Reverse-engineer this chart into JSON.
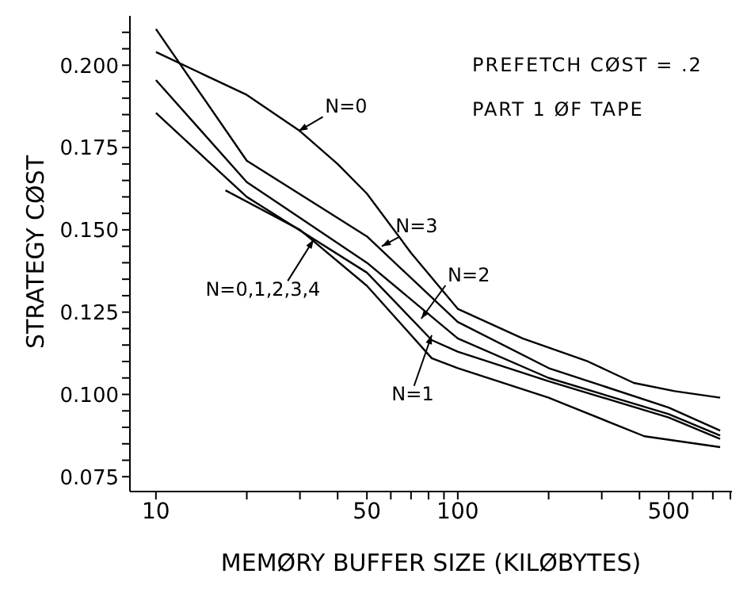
{
  "chart_data": {
    "type": "line",
    "xlabel": "MEMØRY BUFFER SIZE (KILØBYTES)",
    "ylabel": "STRATEGY CØST",
    "log": "x",
    "xlim": [
      8.2,
      810
    ],
    "xticks": [
      10,
      {
        "value": 20,
        "label": null
      },
      {
        "value": 30,
        "label": null
      },
      {
        "value": 40,
        "label": null
      },
      50,
      {
        "value": 60,
        "label": null
      },
      {
        "value": 70,
        "label": null
      },
      {
        "value": 80,
        "label": null
      },
      {
        "value": 90,
        "label": null
      },
      100,
      {
        "value": 200,
        "label": null
      },
      {
        "value": 300,
        "label": null
      },
      {
        "value": 400,
        "label": null
      },
      500,
      {
        "value": 600,
        "label": null
      },
      {
        "value": 700,
        "label": null
      },
      {
        "value": 800,
        "label": null
      }
    ],
    "ylim": [
      0.0705,
      0.215
    ],
    "yticks": [
      {
        "value": 0.075,
        "label": "0.075"
      },
      {
        "value": 0.08,
        "label": null
      },
      {
        "value": 0.085,
        "label": null
      },
      {
        "value": 0.09,
        "label": null
      },
      {
        "value": 0.095,
        "label": null
      },
      {
        "value": 0.1,
        "label": "0.100"
      },
      {
        "value": 0.105,
        "label": null
      },
      {
        "value": 0.11,
        "label": null
      },
      {
        "value": 0.115,
        "label": null
      },
      {
        "value": 0.12,
        "label": null
      },
      {
        "value": 0.125,
        "label": "0.125"
      },
      {
        "value": 0.13,
        "label": null
      },
      {
        "value": 0.135,
        "label": null
      },
      {
        "value": 0.14,
        "label": null
      },
      {
        "value": 0.145,
        "label": null
      },
      {
        "value": 0.15,
        "label": "0.150"
      },
      {
        "value": 0.155,
        "label": null
      },
      {
        "value": 0.16,
        "label": null
      },
      {
        "value": 0.165,
        "label": null
      },
      {
        "value": 0.17,
        "label": null
      },
      {
        "value": 0.175,
        "label": "0.175"
      },
      {
        "value": 0.18,
        "label": null
      },
      {
        "value": 0.185,
        "label": null
      },
      {
        "value": 0.19,
        "label": null
      },
      {
        "value": 0.195,
        "label": null
      },
      {
        "value": 0.2,
        "label": "0.200"
      },
      {
        "value": 0.205,
        "label": null
      },
      {
        "value": 0.21,
        "label": null
      }
    ],
    "grid": false,
    "legend": false,
    "marker": "none",
    "line_style": "solid",
    "series": [
      {
        "color": "#000000",
        "x": [
          10,
          20,
          30,
          40,
          50,
          70,
          100,
          164,
          270,
          383,
          523,
          740
        ],
        "values": [
          0.204,
          0.191,
          0.18,
          0.17,
          0.161,
          0.143,
          0.126,
          0.117,
          0.11,
          0.1035,
          0.101,
          0.099
        ]
      },
      {
        "color": "#000000",
        "x": [
          10,
          20,
          50,
          100,
          200,
          500,
          740
        ],
        "values": [
          0.211,
          0.171,
          0.148,
          0.122,
          0.108,
          0.096,
          0.089
        ]
      },
      {
        "color": "#000000",
        "x": [
          10,
          20,
          50,
          100,
          200,
          500,
          740
        ],
        "values": [
          0.1955,
          0.1645,
          0.14,
          0.117,
          0.105,
          0.094,
          0.0875
        ]
      },
      {
        "color": "#000000",
        "x": [
          10,
          20,
          50,
          82,
          100,
          200,
          500,
          740
        ],
        "values": [
          0.1855,
          0.16,
          0.137,
          0.1165,
          0.113,
          0.104,
          0.093,
          0.0865
        ]
      },
      {
        "color": "#000000",
        "x": [
          17,
          30,
          50,
          82,
          100,
          200,
          415,
          740
        ],
        "values": [
          0.162,
          0.15,
          0.133,
          0.111,
          0.108,
          0.099,
          0.0873,
          0.084
        ]
      }
    ],
    "annotations": [
      "PREFETCH CØST = .2",
      "PART 1 ØF TAPE",
      {
        "text": "N=0",
        "x": 29.7,
        "y": 0.18
      },
      {
        "text": "N=3",
        "x": 56,
        "y": 0.145
      },
      {
        "text": "N=2",
        "x": 75.7,
        "y": 0.123
      },
      {
        "text": "N=1",
        "x": 82,
        "y": 0.118
      },
      {
        "text": "N=0,1,2,3,4",
        "x": 33.3,
        "y": 0.147
      }
    ]
  }
}
